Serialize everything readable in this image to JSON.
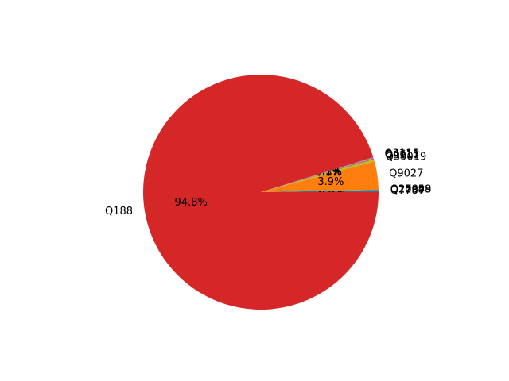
{
  "chart_data": {
    "type": "pie",
    "slice_order": "counterclockwise from 0 degrees (3 o'clock)",
    "slices": [
      {
        "label": "Q7787",
        "value": 0.3,
        "pct_label": "0.3%",
        "color": "#1f77b4"
      },
      {
        "label": "Q22",
        "value": 0.0,
        "pct_label": "0.0%",
        "color": "#aec7e8"
      },
      {
        "label": "Q10058",
        "value": 0.0,
        "pct_label": "0.0%",
        "color": "#ff7f0e"
      },
      {
        "label": "Q27049",
        "value": 0.0,
        "pct_label": "0.0%",
        "color": "#ffbb78"
      },
      {
        "label": "Q2589",
        "value": 0.0,
        "pct_label": "0.0%",
        "color": "#2ca02c"
      },
      {
        "label": "Q9027",
        "value": 3.9,
        "pct_label": "3.9%",
        "color": "#ff7f0e"
      },
      {
        "label": "Q39019",
        "value": 0.3,
        "pct_label": "0.3%",
        "color": "#bcbd22"
      },
      {
        "label": "Q9217",
        "value": 0.1,
        "pct_label": "0.1%",
        "color": "#8c564b"
      },
      {
        "label": "Q4611",
        "value": 0.1,
        "pct_label": "0.1%",
        "color": "#e377c2"
      },
      {
        "label": "Q3115",
        "value": 0.1,
        "pct_label": "0.1%",
        "color": "#7f7f7f"
      },
      {
        "label": "Q188",
        "value": 94.8,
        "pct_label": "94.8%",
        "color": "#d62728"
      }
    ]
  }
}
